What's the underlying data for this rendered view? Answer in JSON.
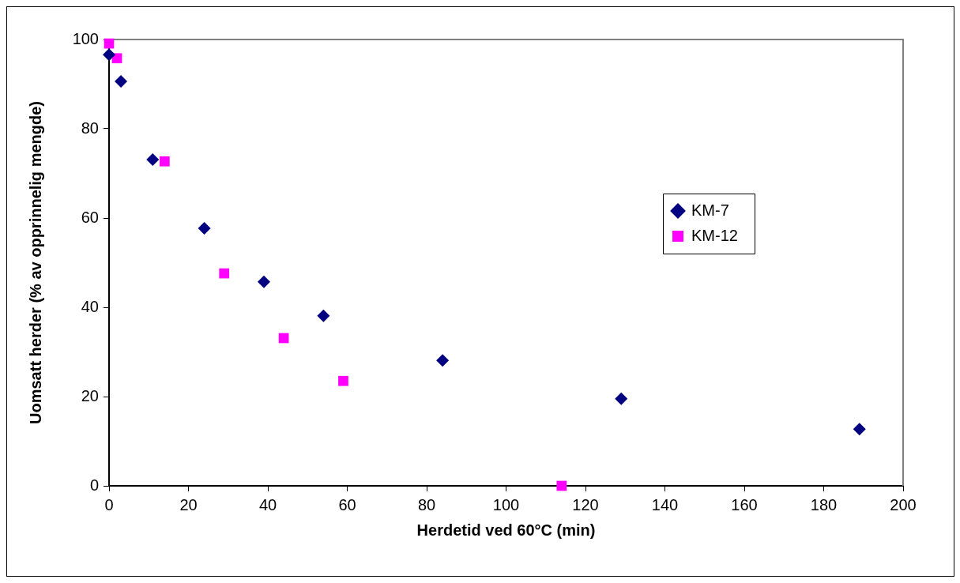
{
  "chart_data": {
    "type": "scatter",
    "xlabel": "Herdetid ved 60°C (min)",
    "ylabel": "Uomsatt herder (% av opprinnelig mengde)",
    "xlim": [
      0,
      200
    ],
    "xticks": [
      0,
      20,
      40,
      60,
      80,
      100,
      120,
      140,
      160,
      180,
      200
    ],
    "ylim": [
      0,
      100
    ],
    "yticks": [
      0,
      20,
      40,
      60,
      80,
      100
    ],
    "grid": false,
    "legend": "right",
    "series": [
      {
        "name": "KM-7",
        "color": "#000080",
        "marker": "diamond",
        "x": [
          0,
          3,
          11,
          24,
          39,
          54,
          84,
          129,
          189
        ],
        "values": [
          96.6,
          90.6,
          73.1,
          57.7,
          45.7,
          38.1,
          28.1,
          19.5,
          12.7
        ]
      },
      {
        "name": "KM-12",
        "color": "#ff00ff",
        "marker": "square",
        "x": [
          0,
          2,
          14,
          29,
          44,
          59,
          114
        ],
        "values": [
          99.1,
          95.8,
          72.7,
          47.6,
          33.1,
          23.5,
          0
        ]
      }
    ]
  }
}
